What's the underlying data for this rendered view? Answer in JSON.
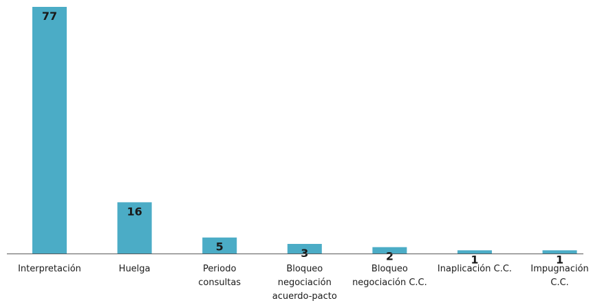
{
  "chart_data": {
    "type": "bar",
    "title": "",
    "xlabel": "",
    "ylabel": "",
    "categories": [
      [
        "Interpretación"
      ],
      [
        "Huelga"
      ],
      [
        "Periodo",
        "consultas"
      ],
      [
        "Bloqueo",
        "negociación",
        "acuerdo-pacto"
      ],
      [
        "Bloqueo",
        "negociación C.C."
      ],
      [
        "Inaplicación C.C."
      ],
      [
        "Impugnación",
        "C.C."
      ]
    ],
    "values": [
      77,
      16,
      5,
      3,
      2,
      1,
      1
    ],
    "data_labels": [
      "77",
      "16",
      "5",
      "3",
      "2",
      "1",
      "1"
    ],
    "ylim": [
      0,
      77
    ],
    "grid": false,
    "legend": "none",
    "colors": {
      "bar": "#4bacc6",
      "axis": "#595959",
      "text": "#1a1a1a"
    }
  }
}
